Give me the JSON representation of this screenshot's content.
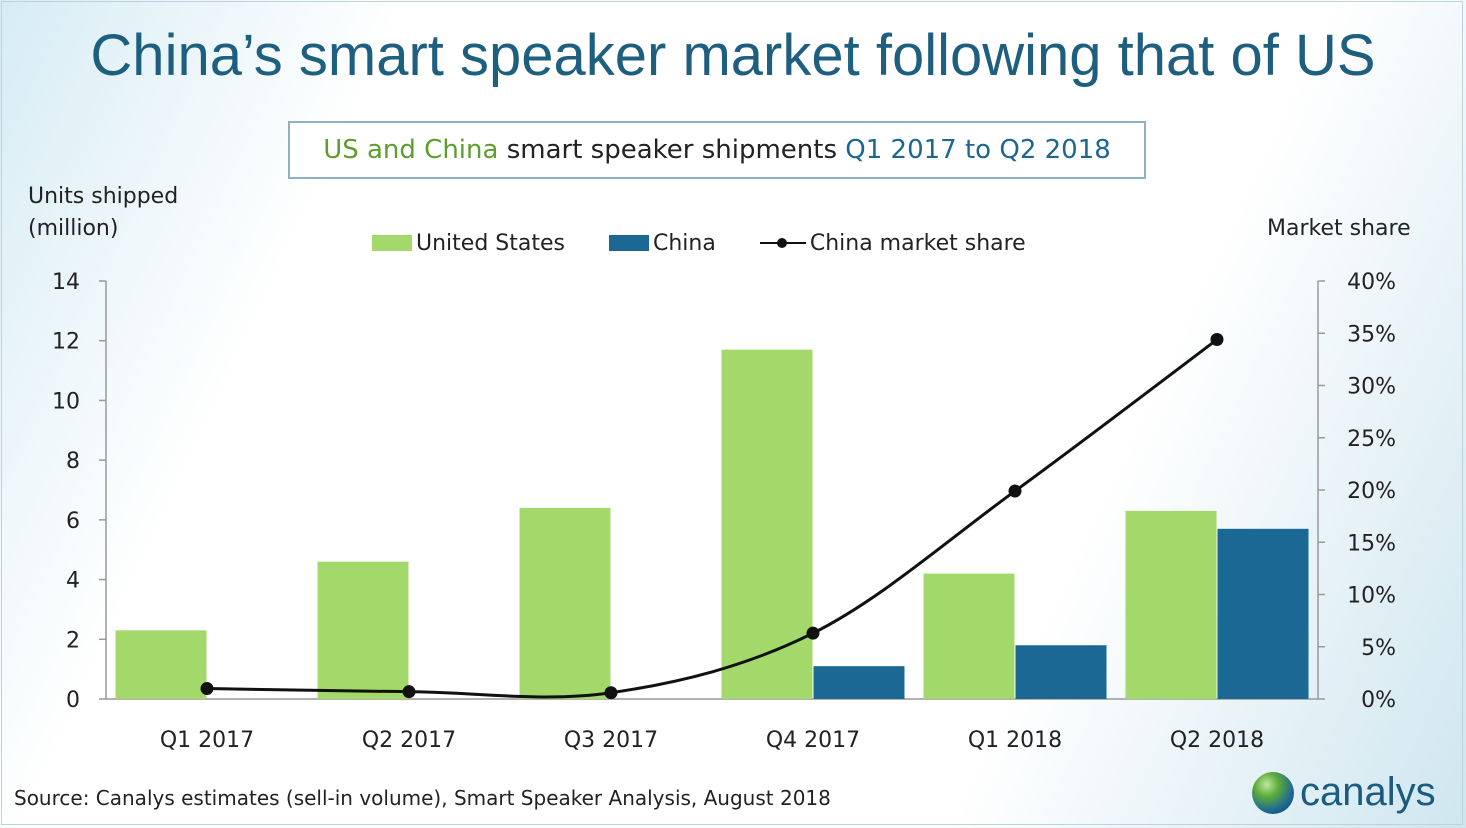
{
  "title": "China’s smart speaker market following that of US",
  "subtitle": {
    "part1": "US and China",
    "part2": " smart speaker shipments ",
    "part3": "Q1 2017 to Q2 2018"
  },
  "colors": {
    "us": "#a3d86b",
    "china": "#1b6894",
    "line": "#111111",
    "title": "#1e5f80"
  },
  "source": "Source: Canalys estimates (sell-in volume), Smart Speaker Analysis, August 2018",
  "logo_text": "canalys",
  "chart_data": {
    "type": "bar",
    "categories": [
      "Q1 2017",
      "Q2 2017",
      "Q3 2017",
      "Q4 2017",
      "Q1 2018",
      "Q2 2018"
    ],
    "series": [
      {
        "name": "United States",
        "type": "bar",
        "axis": "left",
        "values": [
          2.3,
          4.6,
          6.4,
          11.7,
          4.2,
          6.3
        ]
      },
      {
        "name": "China",
        "type": "bar",
        "axis": "left",
        "values": [
          0,
          0,
          0,
          1.1,
          1.8,
          5.7
        ]
      },
      {
        "name": "China market share",
        "type": "line",
        "axis": "right",
        "values": [
          1,
          0.7,
          0.6,
          6.3,
          19.9,
          34.4
        ]
      }
    ],
    "ylabel": "Units shipped (million)",
    "ylabel_lines": [
      "Units shipped",
      "(million)"
    ],
    "y2label": "Market share",
    "ylim": [
      0,
      14
    ],
    "y2lim": [
      0,
      40
    ],
    "yticks": [
      "0",
      "2",
      "4",
      "6",
      "8",
      "10",
      "12",
      "14"
    ],
    "y2ticks": [
      "0%",
      "5%",
      "10%",
      "15%",
      "20%",
      "25%",
      "30%",
      "35%",
      "40%"
    ],
    "legend_position": "top-center"
  }
}
